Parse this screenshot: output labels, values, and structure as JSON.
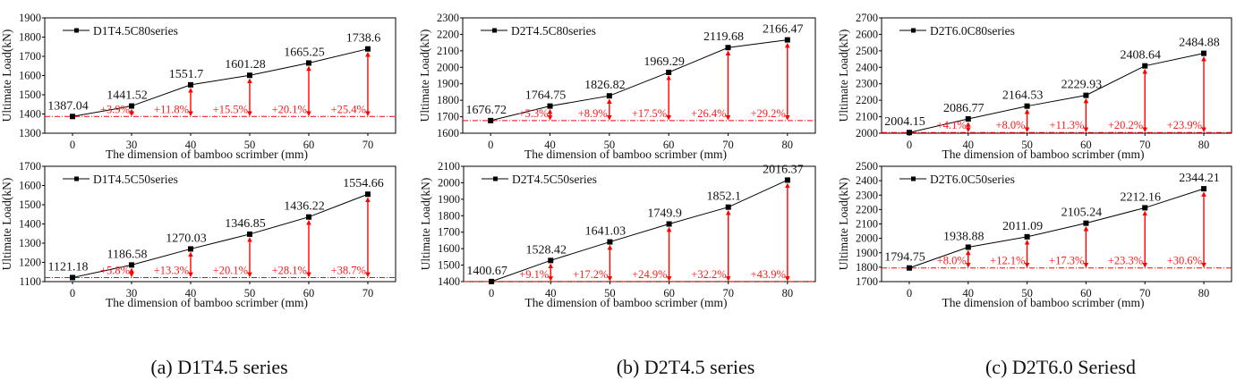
{
  "colors": {
    "line": "#000000",
    "baseline": "#ff0000",
    "arrow": "#ff0000",
    "percent_text": "#ff1a1a"
  },
  "captions": [
    "(a) D1T4.5 series",
    "(b) D2T4.5 series",
    "(c) D2T6.0 Seriesd"
  ],
  "chart_data": [
    {
      "type": "line",
      "title": "",
      "legend": "D1T4.5C80series",
      "legend_position": "top-left",
      "xlabel": "The dimension of bamboo scrimber (mm)",
      "ylabel": "Ultimate Load(kN)",
      "categories": [
        "0",
        "30",
        "40",
        "50",
        "60",
        "70"
      ],
      "values": [
        1387.04,
        1441.52,
        1551.7,
        1601.28,
        1665.25,
        1738.6
      ],
      "value_labels": [
        "1387.04",
        "1441.52",
        "1551.7",
        "1601.28",
        "1665.25",
        "1738.6"
      ],
      "increase_labels": [
        "",
        "+3.9%",
        "+11.8%",
        "+15.5%",
        "+20.1%",
        "+25.4%"
      ],
      "ylim": [
        1300,
        1900
      ],
      "yticks": [
        "1300",
        "1400",
        "1500",
        "1600",
        "1700",
        "1800",
        "1900"
      ],
      "ystep": 100,
      "baseline": 1387.04
    },
    {
      "type": "line",
      "title": "",
      "legend": "D2T4.5C80series",
      "legend_position": "top-left",
      "xlabel": "The dimension of bamboo scrimber (mm)",
      "ylabel": "Ultimate Load(kN)",
      "categories": [
        "0",
        "40",
        "50",
        "60",
        "70",
        "80"
      ],
      "values": [
        1676.72,
        1764.75,
        1826.82,
        1969.29,
        2119.68,
        2166.47
      ],
      "value_labels": [
        "1676.72",
        "1764.75",
        "1826.82",
        "1969.29",
        "2119.68",
        "2166.47"
      ],
      "increase_labels": [
        "",
        "+5.3%",
        "+8.9%",
        "+17.5%",
        "+26.4%",
        "+29.2%"
      ],
      "ylim": [
        1600,
        2300
      ],
      "yticks": [
        "1600",
        "1700",
        "1800",
        "1900",
        "2000",
        "2100",
        "2200",
        "2300"
      ],
      "ystep": 100,
      "baseline": 1676.72
    },
    {
      "type": "line",
      "title": "",
      "legend": "D2T6.0C80series",
      "legend_position": "top-left",
      "xlabel": "The dimension of bamboo scrimber (mm)",
      "ylabel": "Ultimate Load(kN)",
      "categories": [
        "0",
        "40",
        "50",
        "60",
        "70",
        "80"
      ],
      "values": [
        2004.15,
        2086.77,
        2164.53,
        2229.93,
        2408.64,
        2484.88
      ],
      "value_labels": [
        "2004.15",
        "2086.77",
        "2164.53",
        "2229.93",
        "2408.64",
        "2484.88"
      ],
      "increase_labels": [
        "",
        "+4.1%",
        "+8.0%",
        "+11.3%",
        "+20.2%",
        "+23.9%"
      ],
      "ylim": [
        2000,
        2700
      ],
      "yticks": [
        "2000",
        "2100",
        "2200",
        "2300",
        "2400",
        "2500",
        "2600",
        "2700"
      ],
      "ystep": 100,
      "baseline": 2004.15
    },
    {
      "type": "line",
      "title": "",
      "legend": "D1T4.5C50series",
      "legend_position": "top-left",
      "xlabel": "The dimension of bamboo scrimber (mm)",
      "ylabel": "Ultimate Load(kN)",
      "categories": [
        "0",
        "30",
        "40",
        "50",
        "60",
        "70"
      ],
      "values": [
        1121.18,
        1186.58,
        1270.03,
        1346.85,
        1436.22,
        1554.66
      ],
      "value_labels": [
        "1121.18",
        "1186.58",
        "1270.03",
        "1346.85",
        "1436.22",
        "1554.66"
      ],
      "increase_labels": [
        "",
        "+5.8%",
        "+13.3%",
        "+20.1%",
        "+28.1%",
        "+38.7%"
      ],
      "ylim": [
        1100,
        1700
      ],
      "yticks": [
        "1100",
        "1200",
        "1300",
        "1400",
        "1500",
        "1600",
        "1700"
      ],
      "ystep": 100,
      "baseline": 1121.18
    },
    {
      "type": "line",
      "title": "",
      "legend": "D2T4.5C50series",
      "legend_position": "top-left",
      "xlabel": "The dimension of bamboo scrimber (mm)",
      "ylabel": "Ultimate Load(kN)",
      "categories": [
        "0",
        "40",
        "50",
        "60",
        "70",
        "80"
      ],
      "values": [
        1400.67,
        1528.42,
        1641.03,
        1749.9,
        1852.1,
        2016.37
      ],
      "value_labels": [
        "1400.67",
        "1528.42",
        "1641.03",
        "1749.9",
        "1852.1",
        "2016.37"
      ],
      "increase_labels": [
        "",
        "+9.1%",
        "+17.2%",
        "+24.9%",
        "+32.2%",
        "+43.9%"
      ],
      "ylim": [
        1400,
        2100
      ],
      "yticks": [
        "1400",
        "1500",
        "1600",
        "1700",
        "1800",
        "1900",
        "2000",
        "2100"
      ],
      "ystep": 100,
      "baseline": 1400.67
    },
    {
      "type": "line",
      "title": "",
      "legend": "D2T6.0C50series",
      "legend_position": "top-left",
      "xlabel": "The dimension of bamboo scrimber (mm)",
      "ylabel": "Ultimate Load(kN)",
      "categories": [
        "0",
        "40",
        "50",
        "60",
        "70",
        "80"
      ],
      "values": [
        1794.75,
        1938.88,
        2011.09,
        2105.24,
        2212.16,
        2344.21
      ],
      "value_labels": [
        "1794.75",
        "1938.88",
        "2011.09",
        "2105.24",
        "2212.16",
        "2344.21"
      ],
      "increase_labels": [
        "",
        "+8.0%",
        "+12.1%",
        "+17.3%",
        "+23.3%",
        "+30.6%"
      ],
      "ylim": [
        1700,
        2500
      ],
      "yticks": [
        "1700",
        "1800",
        "1900",
        "2000",
        "2100",
        "2200",
        "2300",
        "2400",
        "2500"
      ],
      "ystep": 100,
      "baseline": 1794.75
    }
  ]
}
